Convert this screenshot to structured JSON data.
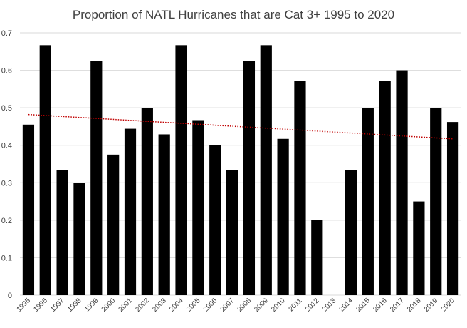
{
  "chart_data": {
    "type": "bar",
    "title": "Proportion of NATL Hurricanes that are Cat 3+ 1995 to 2020",
    "xlabel": "",
    "ylabel": "",
    "ylim": [
      0,
      0.7
    ],
    "yticks": [
      0,
      0.1,
      0.2,
      0.3,
      0.4,
      0.5,
      0.6,
      0.7
    ],
    "ytick_labels": [
      "0",
      "0.1",
      "0.2",
      "0.3",
      "0.4",
      "0.5",
      "0.6",
      "0.7"
    ],
    "grid": true,
    "legend": "none",
    "categories": [
      "1995",
      "1996",
      "1997",
      "1998",
      "1999",
      "2000",
      "2001",
      "2002",
      "2003",
      "2004",
      "2005",
      "2006",
      "2007",
      "2008",
      "2009",
      "2010",
      "2011",
      "2012",
      "2013",
      "2014",
      "2015",
      "2016",
      "2017",
      "2018",
      "2019",
      "2020"
    ],
    "values": [
      0.455,
      0.667,
      0.333,
      0.3,
      0.625,
      0.375,
      0.444,
      0.5,
      0.429,
      0.667,
      0.467,
      0.4,
      0.333,
      0.625,
      0.667,
      0.417,
      0.571,
      0.2,
      0,
      0.333,
      0.5,
      0.571,
      0.6,
      0.25,
      0.5,
      0.462
    ],
    "bar_color": "#000000",
    "trendline": {
      "type": "linear",
      "start": 0.482,
      "end": 0.417,
      "color": "#c00000",
      "style": "dotted"
    }
  }
}
